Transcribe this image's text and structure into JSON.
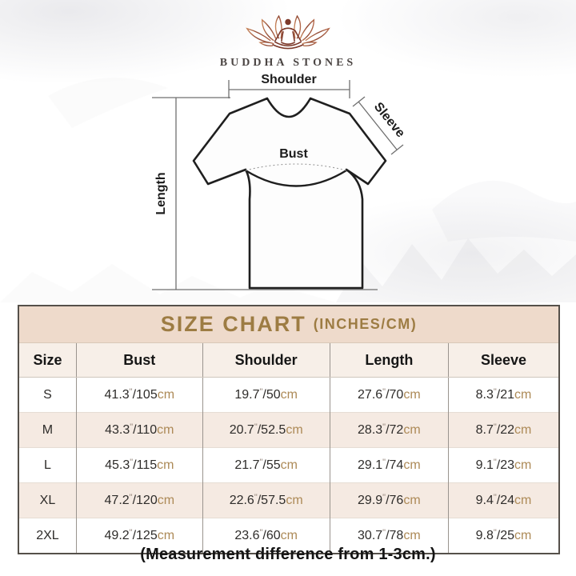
{
  "brand": {
    "name": "BUDDHA STONES"
  },
  "diagram": {
    "shoulder_label": "Shoulder",
    "sleeve_label": "Sleeve",
    "bust_label": "Bust",
    "length_label": "Length"
  },
  "size_chart": {
    "title": "SIZE CHART",
    "title_suffix": "(INCHES/CM)",
    "columns": [
      "Size",
      "Bust",
      "Shoulder",
      "Length",
      "Sleeve"
    ],
    "unit_inch_mark": "\"",
    "unit_cm": "cm",
    "rows": [
      {
        "size": "S",
        "bust": {
          "in": "41.3",
          "cm": "105"
        },
        "shoulder": {
          "in": "19.7",
          "cm": "50"
        },
        "length": {
          "in": "27.6",
          "cm": "70"
        },
        "sleeve": {
          "in": "8.3",
          "cm": "21"
        }
      },
      {
        "size": "M",
        "bust": {
          "in": "43.3",
          "cm": "110"
        },
        "shoulder": {
          "in": "20.7",
          "cm": "52.5"
        },
        "length": {
          "in": "28.3",
          "cm": "72"
        },
        "sleeve": {
          "in": "8.7",
          "cm": "22"
        }
      },
      {
        "size": "L",
        "bust": {
          "in": "45.3",
          "cm": "115"
        },
        "shoulder": {
          "in": "21.7",
          "cm": "55"
        },
        "length": {
          "in": "29.1",
          "cm": "74"
        },
        "sleeve": {
          "in": "9.1",
          "cm": "23"
        }
      },
      {
        "size": "XL",
        "bust": {
          "in": "47.2",
          "cm": "120"
        },
        "shoulder": {
          "in": "22.6",
          "cm": "57.5"
        },
        "length": {
          "in": "29.9",
          "cm": "76"
        },
        "sleeve": {
          "in": "9.4",
          "cm": "24"
        }
      },
      {
        "size": "2XL",
        "bust": {
          "in": "49.2",
          "cm": "125"
        },
        "shoulder": {
          "in": "23.6",
          "cm": "60"
        },
        "length": {
          "in": "30.7",
          "cm": "78"
        },
        "sleeve": {
          "in": "9.8",
          "cm": "25"
        }
      }
    ]
  },
  "footer_note": "(Measurement difference from 1-3cm.)",
  "colors": {
    "title_band_bg": "#eedacb",
    "title_text": "#9d7c43",
    "header_row_bg": "#f7efe8",
    "alt_row_bg": "#f5eae2",
    "cm_unit_text": "#ad8a57",
    "table_border": "#55504a",
    "logo_maroon": "#7d3a2b",
    "logo_light": "#c8845a"
  }
}
